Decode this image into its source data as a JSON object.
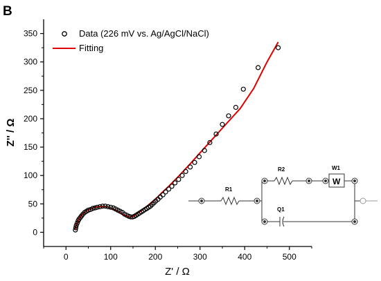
{
  "panel_label": "B",
  "chart_data": {
    "type": "scatter",
    "xlabel": "Z' / Ω",
    "ylabel": "Z'' / Ω",
    "xlim": [
      -50,
      550
    ],
    "ylim": [
      -25,
      375
    ],
    "xticks": [
      0,
      100,
      200,
      300,
      400,
      500
    ],
    "yticks": [
      0,
      50,
      100,
      150,
      200,
      250,
      300,
      350
    ],
    "grid": false,
    "legend_position": "top-left",
    "series": [
      {
        "name": "Data (226 mV vs. Ag/AgCl/NaCl)",
        "kind": "scatter",
        "marker": "open-circle",
        "color": "#000000",
        "x": [
          21,
          22,
          23,
          25,
          27,
          29,
          32,
          35,
          38,
          42,
          46,
          50,
          55,
          60,
          65,
          70,
          76,
          82,
          88,
          94,
          100,
          106,
          111,
          116,
          121,
          126,
          131,
          136,
          141,
          145,
          149,
          153,
          157,
          161,
          165,
          169,
          173,
          177,
          181,
          185,
          189,
          193,
          197,
          201,
          206,
          211,
          217,
          223,
          230,
          237,
          244,
          252,
          260,
          268,
          278,
          288,
          298,
          310,
          322,
          336,
          350,
          364,
          380,
          397,
          430,
          475
        ],
        "y": [
          4,
          8,
          12,
          16,
          20,
          23,
          26,
          29,
          32,
          35,
          37,
          39,
          40,
          42,
          43,
          44,
          45,
          46,
          46,
          45,
          44,
          43,
          41,
          39,
          37,
          35,
          32,
          30,
          28,
          27,
          27,
          28,
          30,
          32,
          34,
          36,
          38,
          40,
          42,
          44,
          46,
          49,
          52,
          55,
          58,
          62,
          66,
          71,
          76,
          81,
          87,
          93,
          100,
          107,
          115,
          123,
          133,
          144,
          158,
          173,
          190,
          205,
          220,
          252,
          290,
          325
        ]
      },
      {
        "name": "Fitting",
        "kind": "line",
        "color": "#e00000",
        "x": [
          20,
          22,
          25,
          30,
          35,
          40,
          48,
          56,
          64,
          72,
          80,
          88,
          95,
          102,
          110,
          118,
          126,
          134,
          140,
          145,
          150,
          156,
          163,
          170,
          178,
          186,
          195,
          205,
          215,
          230,
          250,
          275,
          300,
          330,
          360,
          390,
          420,
          450,
          475
        ],
        "y": [
          4,
          10,
          17,
          24,
          30,
          34,
          39,
          42,
          44,
          45,
          45,
          45,
          44,
          42,
          39,
          36,
          32,
          29,
          27,
          27,
          28,
          31,
          35,
          39,
          44,
          49,
          55,
          62,
          70,
          81,
          97,
          118,
          140,
          166,
          192,
          218,
          253,
          300,
          335
        ]
      }
    ]
  },
  "circuit": {
    "labels": {
      "r1": "R1",
      "r2": "R2",
      "w1": "W1",
      "q1": "Q1",
      "w_symbol": "W"
    }
  }
}
